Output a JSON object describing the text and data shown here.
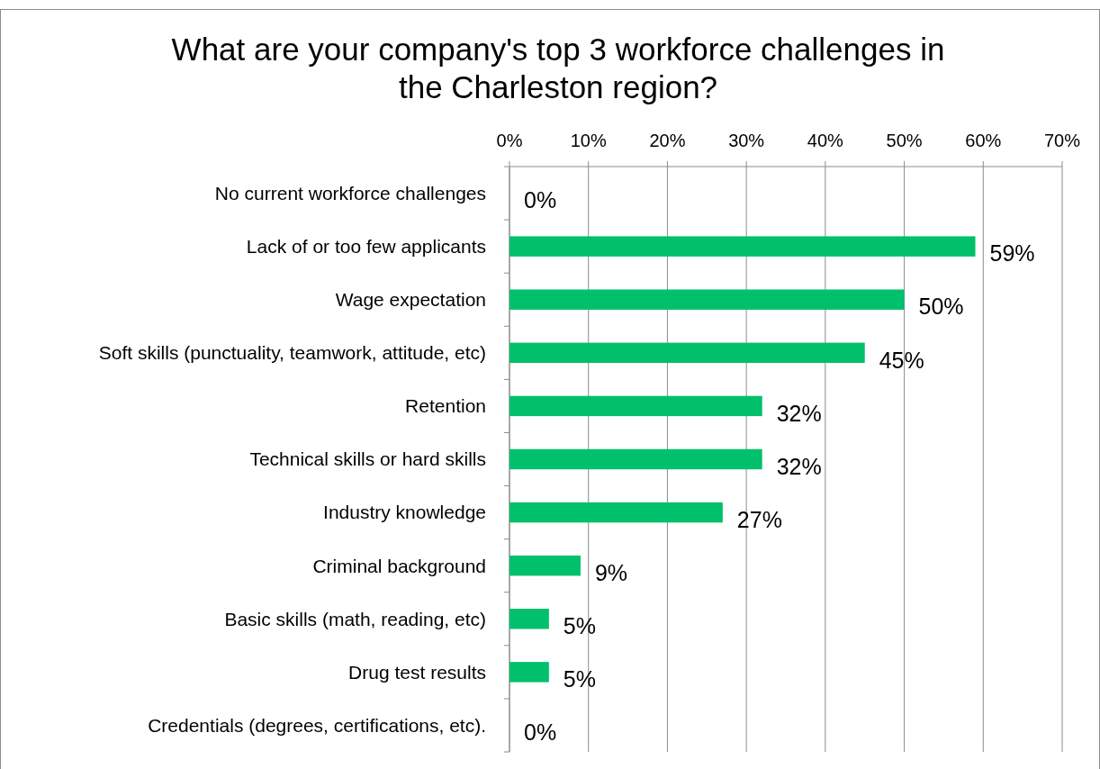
{
  "chart_data": {
    "type": "bar",
    "orientation": "horizontal",
    "title": "What are your company's top 3 workforce challenges in the Charleston region?",
    "categories": [
      "No current workforce challenges",
      "Lack of or too few applicants",
      "Wage expectation",
      "Soft skills (punctuality, teamwork, attitude, etc)",
      "Retention",
      "Technical skills or hard skills",
      "Industry knowledge",
      "Criminal background",
      "Basic skills (math, reading, etc)",
      "Drug test results",
      "Credentials (degrees, certifications, etc)."
    ],
    "values": [
      0,
      59,
      50,
      45,
      32,
      32,
      27,
      9,
      5,
      5,
      0
    ],
    "value_labels": [
      "0%",
      "59%",
      "50%",
      "45%",
      "32%",
      "32%",
      "27%",
      "9%",
      "5%",
      "5%",
      "0%"
    ],
    "color": "#00c06b",
    "xlim": [
      0,
      70
    ],
    "xticks": [
      {
        "value": 0,
        "label": "0%"
      },
      {
        "value": 10,
        "label": "10%"
      },
      {
        "value": 20,
        "label": "20%"
      },
      {
        "value": 30,
        "label": "30%"
      },
      {
        "value": 40,
        "label": "40%"
      },
      {
        "value": 50,
        "label": "50%"
      },
      {
        "value": 60,
        "label": "60%"
      },
      {
        "value": 70,
        "label": "70%"
      }
    ],
    "grid": "x"
  }
}
